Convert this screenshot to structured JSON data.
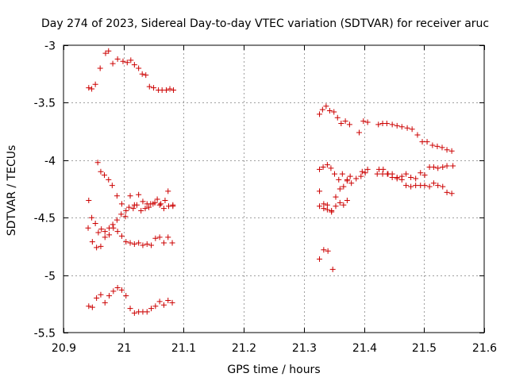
{
  "chart_data": {
    "type": "scatter",
    "title": "Day 274 of 2023, Sidereal Day-to-day VTEC variation (SDTVAR) for receiver aruc",
    "xlabel": "GPS time / hours",
    "ylabel": "SDTVAR / TECUs",
    "xlim": [
      20.9,
      21.6
    ],
    "ylim": [
      -5.5,
      -3
    ],
    "xticks": [
      20.9,
      21,
      21.1,
      21.2,
      21.3,
      21.4,
      21.5,
      21.6
    ],
    "xtick_labels": [
      "20.9",
      "21",
      "21.1",
      "21.2",
      "21.3",
      "21.4",
      "21.5",
      "21.6"
    ],
    "yticks": [
      -5.5,
      -5,
      -4.5,
      -4,
      -3.5,
      -3
    ],
    "ytick_labels": [
      "-5.5",
      "-5",
      "-4.5",
      "-4",
      "-3.5",
      "-3"
    ],
    "grid": true,
    "marker": "+",
    "color": "#cc0000",
    "series": [
      {
        "name": "points",
        "x": [
          20.942,
          20.947,
          20.953,
          20.961,
          20.97,
          20.975,
          20.982,
          20.99,
          20.999,
          21.006,
          21.012,
          21.018,
          21.025,
          21.031,
          21.037,
          21.043,
          21.05,
          21.058,
          21.064,
          21.071,
          21.077,
          21.083,
          20.942,
          20.947,
          20.953,
          20.958,
          20.963,
          20.969,
          20.976,
          20.982,
          20.989,
          20.996,
          21.003,
          21.009,
          21.016,
          21.022,
          21.029,
          21.036,
          21.042,
          21.049,
          21.056,
          21.062,
          21.069,
          21.075,
          21.082,
          20.941,
          20.948,
          20.955,
          20.962,
          20.969,
          20.976,
          20.983,
          20.99,
          20.997,
          21.004,
          21.011,
          21.018,
          21.025,
          21.032,
          21.039,
          21.046,
          21.053,
          21.06,
          21.067,
          21.074,
          21.081,
          20.957,
          20.962,
          20.968,
          20.975,
          20.981,
          20.989,
          20.997,
          21.004,
          21.011,
          21.018,
          21.025,
          21.032,
          21.039,
          21.045,
          21.052,
          21.06,
          21.067,
          21.074,
          21.082,
          20.942,
          20.948,
          20.955,
          20.962,
          20.969,
          20.976,
          20.983,
          20.99,
          20.997,
          21.004,
          21.011,
          21.018,
          21.025,
          21.032,
          21.039,
          21.046,
          21.053,
          21.06,
          21.067,
          21.074,
          21.081,
          21.326,
          21.331,
          21.337,
          21.343,
          21.35,
          21.356,
          21.362,
          21.369,
          21.376,
          21.392,
          21.399,
          21.406,
          21.424,
          21.431,
          21.438,
          21.447,
          21.455,
          21.463,
          21.472,
          21.48,
          21.489,
          21.497,
          21.505,
          21.514,
          21.522,
          21.53,
          21.538,
          21.546,
          21.326,
          21.332,
          21.339,
          21.345,
          21.351,
          21.358,
          21.364,
          21.372,
          21.377,
          21.387,
          21.397,
          21.406,
          21.422,
          21.431,
          21.439,
          21.447,
          21.455,
          21.463,
          21.47,
          21.478,
          21.486,
          21.494,
          21.501,
          21.509,
          21.516,
          21.523,
          21.531,
          21.538,
          21.548,
          21.326,
          21.333,
          21.339,
          21.346,
          21.353,
          21.36,
          21.366,
          21.372,
          21.379,
          21.395,
          21.402,
          21.425,
          21.432,
          21.44,
          21.447,
          21.455,
          21.463,
          21.47,
          21.478,
          21.486,
          21.494,
          21.501,
          21.509,
          21.516,
          21.523,
          21.531,
          21.538,
          21.546,
          21.326,
          21.333,
          21.339,
          21.346,
          21.353,
          21.36,
          21.366,
          21.372,
          21.326,
          21.333,
          21.34,
          21.348
        ],
        "y": [
          -3.37,
          -3.38,
          -3.34,
          -3.2,
          -3.07,
          -3.05,
          -3.16,
          -3.12,
          -3.14,
          -3.15,
          -3.13,
          -3.17,
          -3.2,
          -3.25,
          -3.26,
          -3.36,
          -3.37,
          -3.39,
          -3.39,
          -3.39,
          -3.38,
          -3.39,
          -4.35,
          -4.5,
          -4.55,
          -4.63,
          -4.6,
          -4.62,
          -4.59,
          -4.56,
          -4.52,
          -4.47,
          -4.49,
          -4.41,
          -4.42,
          -4.39,
          -4.44,
          -4.42,
          -4.41,
          -4.38,
          -4.34,
          -4.38,
          -4.35,
          -4.4,
          -4.39,
          -4.59,
          -4.71,
          -4.76,
          -4.75,
          -4.67,
          -4.65,
          -4.59,
          -4.62,
          -4.66,
          -4.71,
          -4.72,
          -4.73,
          -4.72,
          -4.74,
          -4.73,
          -4.74,
          -4.68,
          -4.67,
          -4.72,
          -4.67,
          -4.72,
          -4.02,
          -4.1,
          -4.13,
          -4.17,
          -4.22,
          -4.31,
          -4.38,
          -4.44,
          -4.31,
          -4.39,
          -4.3,
          -4.36,
          -4.38,
          -4.38,
          -4.37,
          -4.39,
          -4.42,
          -4.27,
          -4.4,
          -5.27,
          -5.28,
          -5.2,
          -5.17,
          -5.24,
          -5.18,
          -5.14,
          -5.11,
          -5.13,
          -5.18,
          -5.29,
          -5.33,
          -5.32,
          -5.32,
          -5.32,
          -5.29,
          -5.27,
          -5.23,
          -5.26,
          -5.22,
          -5.24,
          -3.6,
          -3.56,
          -3.53,
          -3.57,
          -3.58,
          -3.63,
          -3.68,
          -3.66,
          -3.69,
          -3.76,
          -3.66,
          -3.67,
          -3.69,
          -3.68,
          -3.68,
          -3.69,
          -3.7,
          -3.71,
          -3.72,
          -3.73,
          -3.78,
          -3.84,
          -3.84,
          -3.87,
          -3.88,
          -3.89,
          -3.91,
          -3.92,
          -4.08,
          -4.06,
          -4.04,
          -4.07,
          -4.12,
          -4.17,
          -4.12,
          -4.17,
          -4.14,
          -4.16,
          -4.1,
          -4.08,
          -4.12,
          -4.12,
          -4.12,
          -4.15,
          -4.15,
          -4.14,
          -4.12,
          -4.15,
          -4.16,
          -4.11,
          -4.13,
          -4.06,
          -4.06,
          -4.07,
          -4.06,
          -4.05,
          -4.05,
          -4.27,
          -4.38,
          -4.39,
          -4.45,
          -4.32,
          -4.25,
          -4.23,
          -4.18,
          -4.2,
          -4.14,
          -4.11,
          -4.08,
          -4.08,
          -4.12,
          -4.12,
          -4.16,
          -4.17,
          -4.22,
          -4.23,
          -4.22,
          -4.22,
          -4.22,
          -4.23,
          -4.2,
          -4.22,
          -4.23,
          -4.28,
          -4.29,
          -4.4,
          -4.42,
          -4.43,
          -4.44,
          -4.4,
          -4.37,
          -4.39,
          -4.35,
          -4.86,
          -4.78,
          -4.79,
          -4.95
        ]
      }
    ]
  }
}
